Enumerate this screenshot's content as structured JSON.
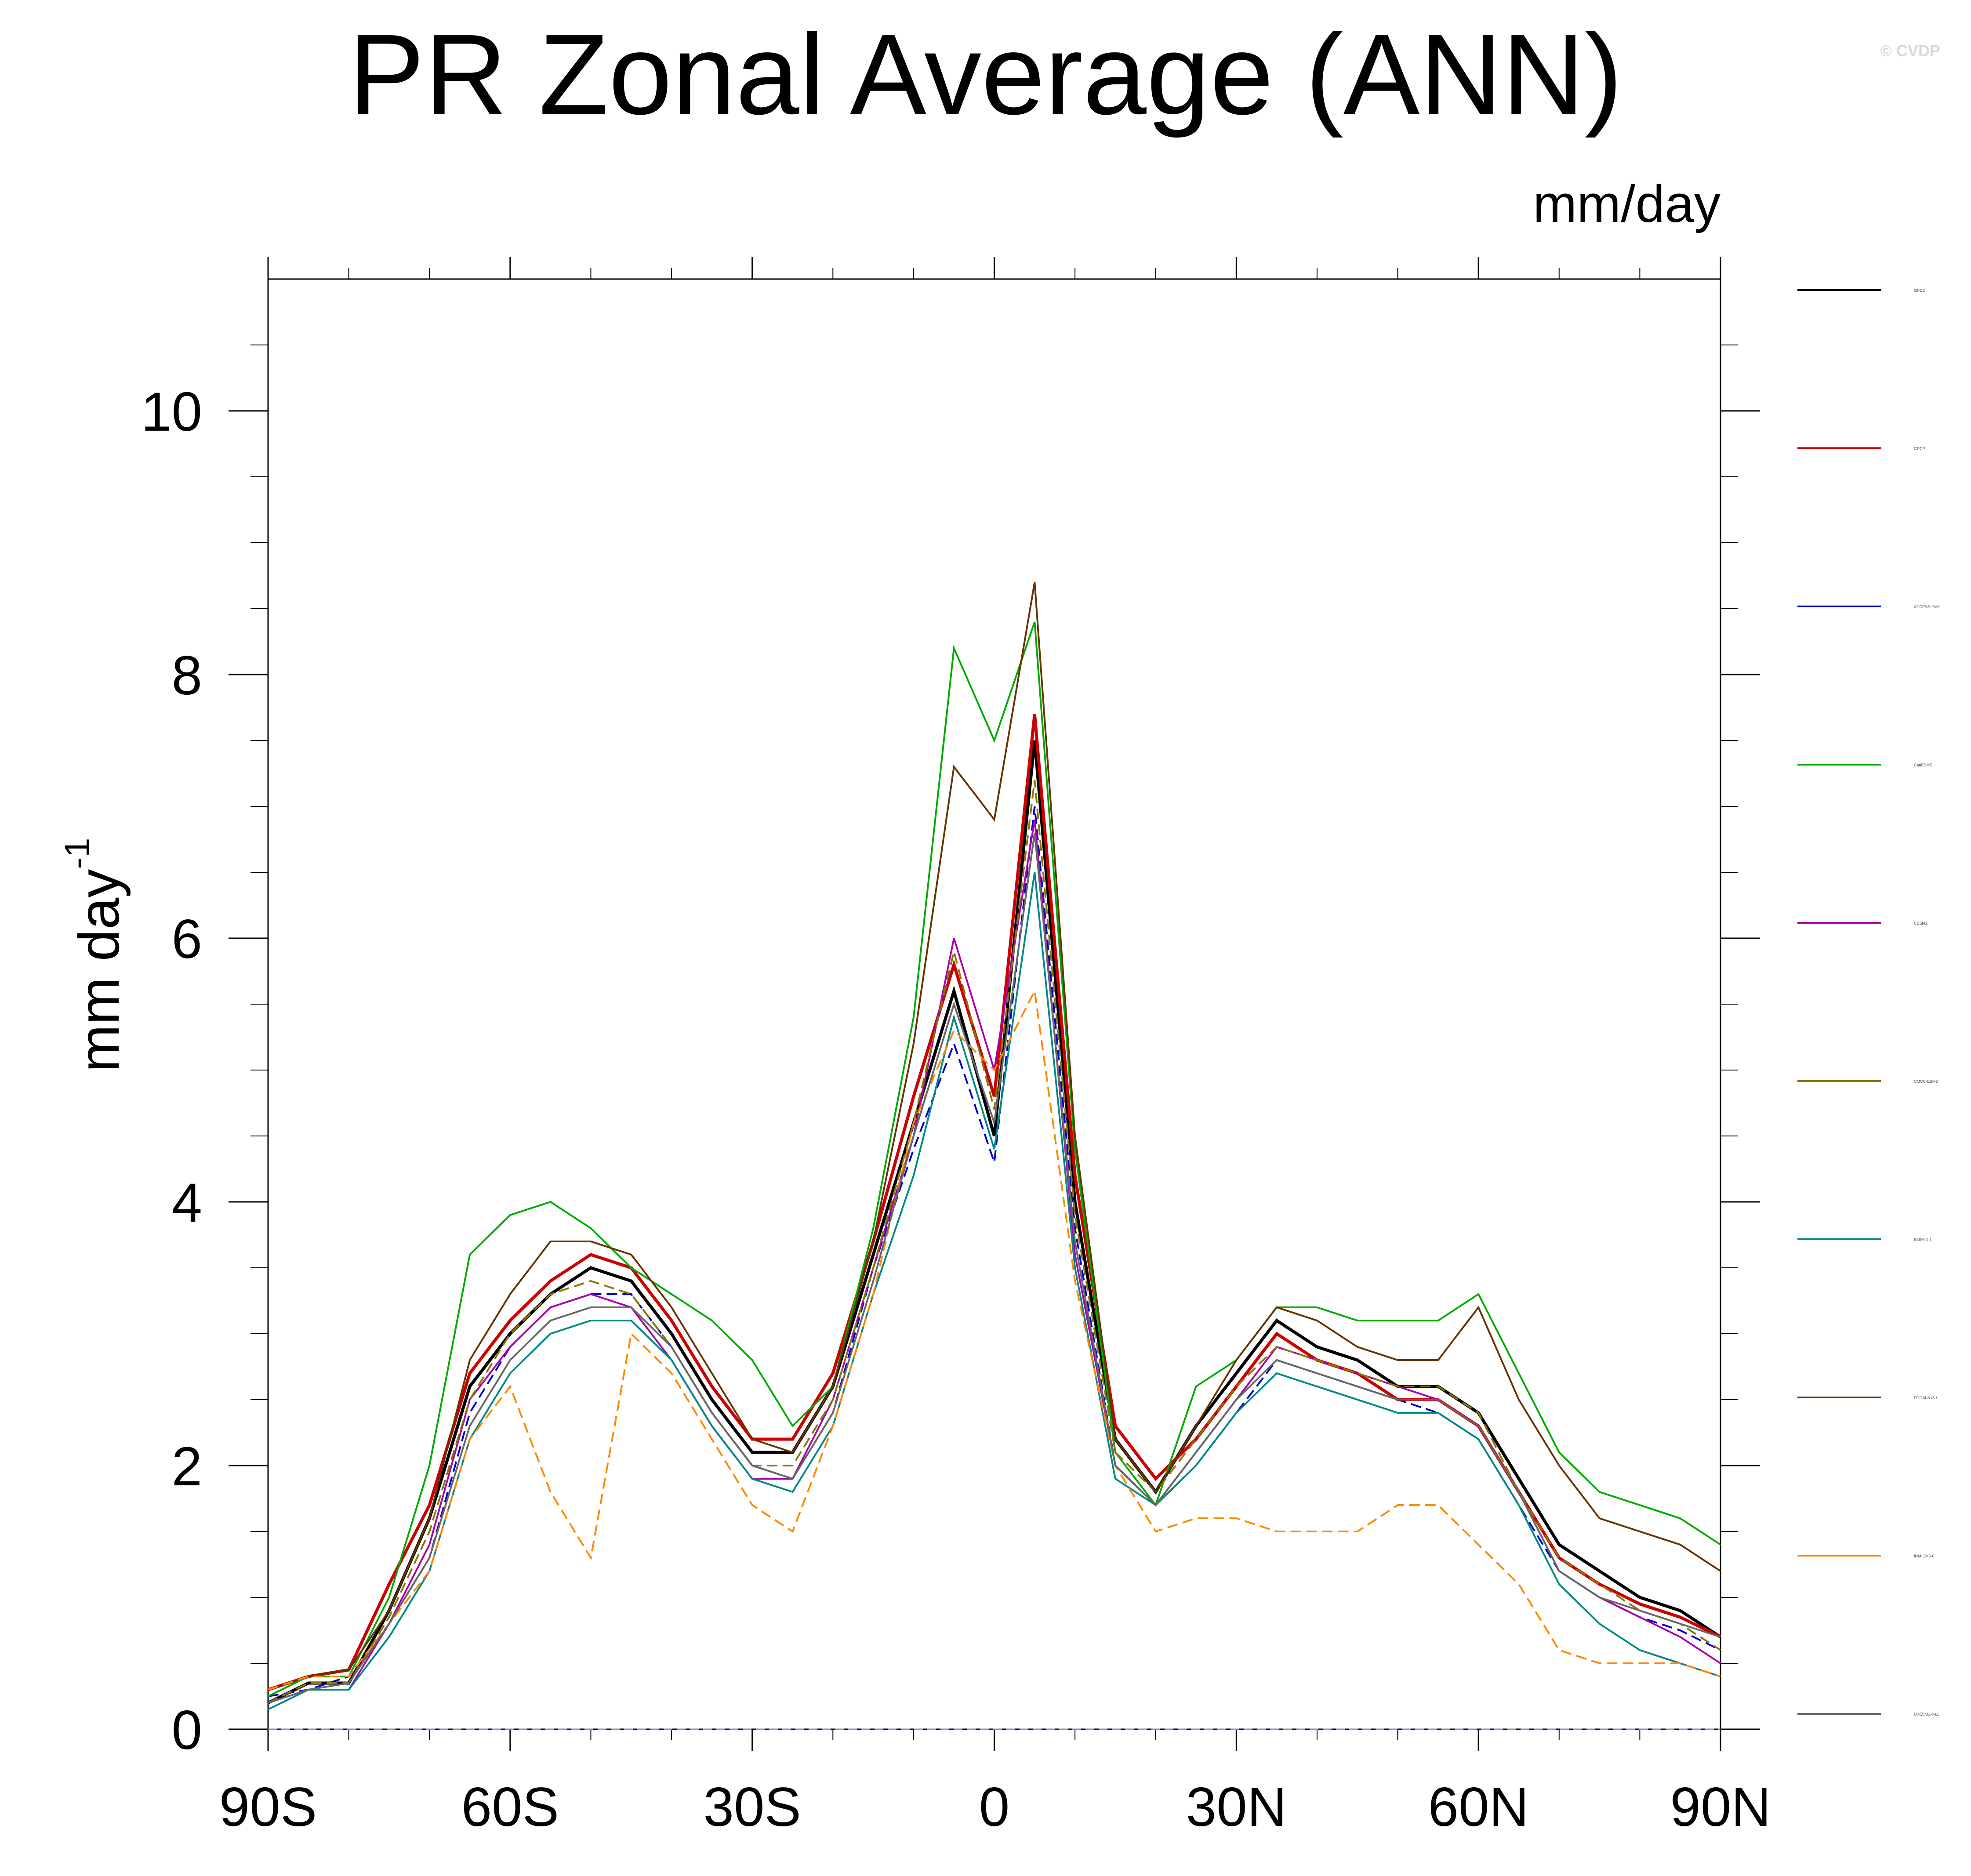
{
  "title": "PR Zonal Average (ANN)",
  "watermark": "© CVDP",
  "units_label": "mm/day",
  "ylabel_main": "mm day",
  "ylabel_exp": "-1",
  "chart_data": {
    "type": "line",
    "title": "PR Zonal Average (ANN)",
    "xlabel": "",
    "ylabel": "mm day-1",
    "xlim": [
      -90,
      90
    ],
    "ylim": [
      0,
      11
    ],
    "x_ticks": [
      -90,
      -60,
      -30,
      0,
      30,
      60,
      90
    ],
    "x_tick_labels": [
      "90S",
      "60S",
      "30S",
      "0",
      "30N",
      "60N",
      "90N"
    ],
    "y_ticks": [
      0,
      2,
      4,
      6,
      8,
      10
    ],
    "y_tick_labels": [
      "0",
      "2",
      "4",
      "6",
      "8",
      "10"
    ],
    "grid": false,
    "legend_placement": "right",
    "colors": [
      "#000000",
      "#cc0000",
      "#0000cc",
      "#00aa00",
      "#aa00aa",
      "#887700",
      "#008888",
      "#663300",
      "#ff8800",
      "#666666"
    ],
    "x": [
      -90,
      -85,
      -80,
      -75,
      -70,
      -65,
      -60,
      -55,
      -50,
      -45,
      -40,
      -35,
      -30,
      -25,
      -20,
      -15,
      -10,
      -5,
      0,
      5,
      10,
      15,
      20,
      25,
      30,
      35,
      40,
      45,
      50,
      55,
      60,
      65,
      70,
      75,
      80,
      85,
      90
    ],
    "series": [
      {
        "name": "GPCC",
        "values": [
          0.2,
          0.35,
          0.35,
          0.9,
          1.6,
          2.6,
          3.0,
          3.3,
          3.5,
          3.4,
          3.0,
          2.5,
          2.1,
          2.1,
          2.6,
          3.6,
          4.6,
          5.6,
          4.5,
          7.5,
          4.0,
          2.2,
          1.8,
          2.3,
          2.7,
          3.1,
          2.9,
          2.8,
          2.6,
          2.6,
          2.4,
          1.9,
          1.4,
          1.2,
          1.0,
          0.9,
          0.7
        ]
      },
      {
        "name": "GPCP",
        "values": [
          0.3,
          0.4,
          0.45,
          1.1,
          1.7,
          2.7,
          3.1,
          3.4,
          3.6,
          3.5,
          3.1,
          2.6,
          2.2,
          2.2,
          2.7,
          3.7,
          4.8,
          5.8,
          4.8,
          7.7,
          4.2,
          2.3,
          1.9,
          2.2,
          2.6,
          3.0,
          2.8,
          2.7,
          2.5,
          2.5,
          2.3,
          1.8,
          1.3,
          1.1,
          0.95,
          0.85,
          0.7
        ]
      },
      {
        "name": "ACCESS-CM2",
        "values": [
          0.25,
          0.3,
          0.4,
          0.8,
          1.3,
          2.4,
          2.9,
          3.2,
          3.3,
          3.3,
          2.9,
          2.4,
          2.0,
          1.9,
          2.4,
          3.5,
          4.4,
          5.2,
          4.3,
          7.0,
          3.8,
          2.0,
          1.7,
          2.0,
          2.4,
          2.8,
          2.7,
          2.6,
          2.5,
          2.4,
          2.2,
          1.7,
          1.2,
          1.0,
          0.85,
          0.75,
          0.6
        ]
      },
      {
        "name": "CanESM5",
        "values": [
          0.25,
          0.4,
          0.4,
          1.0,
          2.0,
          3.6,
          3.9,
          4.0,
          3.8,
          3.5,
          3.3,
          3.1,
          2.8,
          2.3,
          2.6,
          3.8,
          5.4,
          8.2,
          7.5,
          8.4,
          4.4,
          2.1,
          1.7,
          2.6,
          2.8,
          3.2,
          3.2,
          3.1,
          3.1,
          3.1,
          3.3,
          2.7,
          2.1,
          1.8,
          1.7,
          1.6,
          1.4
        ]
      },
      {
        "name": "CESM2",
        "values": [
          0.2,
          0.3,
          0.3,
          0.8,
          1.4,
          2.5,
          2.9,
          3.2,
          3.3,
          3.2,
          2.8,
          2.3,
          1.9,
          1.9,
          2.5,
          3.5,
          4.5,
          6.0,
          5.0,
          6.9,
          3.6,
          2.0,
          1.7,
          2.1,
          2.5,
          2.9,
          2.8,
          2.7,
          2.6,
          2.5,
          2.3,
          1.8,
          1.2,
          1.0,
          0.85,
          0.7,
          0.5
        ]
      },
      {
        "name": "CMCC-ESM2",
        "values": [
          0.2,
          0.35,
          0.35,
          0.85,
          1.5,
          2.5,
          3.0,
          3.3,
          3.4,
          3.3,
          2.9,
          2.4,
          2.0,
          2.0,
          2.5,
          3.5,
          4.6,
          5.9,
          4.7,
          7.2,
          3.9,
          2.1,
          1.8,
          2.2,
          2.6,
          2.9,
          2.8,
          2.7,
          2.6,
          2.6,
          2.4,
          1.8,
          1.3,
          1.1,
          0.9,
          0.8,
          0.6
        ]
      },
      {
        "name": "E3SM-1-1",
        "values": [
          0.15,
          0.3,
          0.3,
          0.7,
          1.2,
          2.2,
          2.7,
          3.0,
          3.1,
          3.1,
          2.8,
          2.3,
          1.9,
          1.8,
          2.3,
          3.3,
          4.2,
          5.4,
          4.4,
          6.5,
          3.5,
          1.9,
          1.7,
          2.0,
          2.4,
          2.7,
          2.6,
          2.5,
          2.4,
          2.4,
          2.2,
          1.7,
          1.1,
          0.8,
          0.6,
          0.5,
          0.4
        ]
      },
      {
        "name": "FGOALS-f3-L",
        "values": [
          0.3,
          0.4,
          0.45,
          0.9,
          1.6,
          2.8,
          3.3,
          3.7,
          3.7,
          3.6,
          3.2,
          2.7,
          2.2,
          2.1,
          2.6,
          3.7,
          5.2,
          7.3,
          6.9,
          8.7,
          4.5,
          2.2,
          1.8,
          2.3,
          2.8,
          3.2,
          3.1,
          2.9,
          2.8,
          2.8,
          3.2,
          2.5,
          2.0,
          1.6,
          1.5,
          1.4,
          1.2
        ]
      },
      {
        "name": "INM-CM5-0",
        "values": [
          0.3,
          0.4,
          0.4,
          0.8,
          1.2,
          2.2,
          2.6,
          1.8,
          1.3,
          3.0,
          2.7,
          2.2,
          1.7,
          1.5,
          2.3,
          3.3,
          4.6,
          5.3,
          5.0,
          5.6,
          3.4,
          2.0,
          1.5,
          1.6,
          1.6,
          1.5,
          1.5,
          1.5,
          1.7,
          1.7,
          1.4,
          1.1,
          0.6,
          0.5,
          0.5,
          0.5,
          0.4
        ]
      },
      {
        "name": "UKESM1-0-LL",
        "values": [
          0.2,
          0.3,
          0.35,
          0.8,
          1.3,
          2.3,
          2.8,
          3.1,
          3.2,
          3.2,
          2.9,
          2.4,
          2.0,
          1.9,
          2.4,
          3.4,
          4.5,
          5.5,
          4.6,
          6.8,
          3.7,
          2.0,
          1.7,
          2.1,
          2.5,
          2.8,
          2.7,
          2.6,
          2.5,
          2.5,
          2.3,
          1.8,
          1.2,
          1.0,
          0.9,
          0.8,
          0.7
        ]
      }
    ],
    "legend_entries": [
      "GPCC",
      "GPCP",
      "ACCESS-CM2",
      "CanESM5",
      "CESM2",
      "CMCC-ESM2",
      "E3SM-1-1",
      "FGOALS-f3-L",
      "INM-CM5-0",
      "UKESM1-0-LL"
    ]
  }
}
